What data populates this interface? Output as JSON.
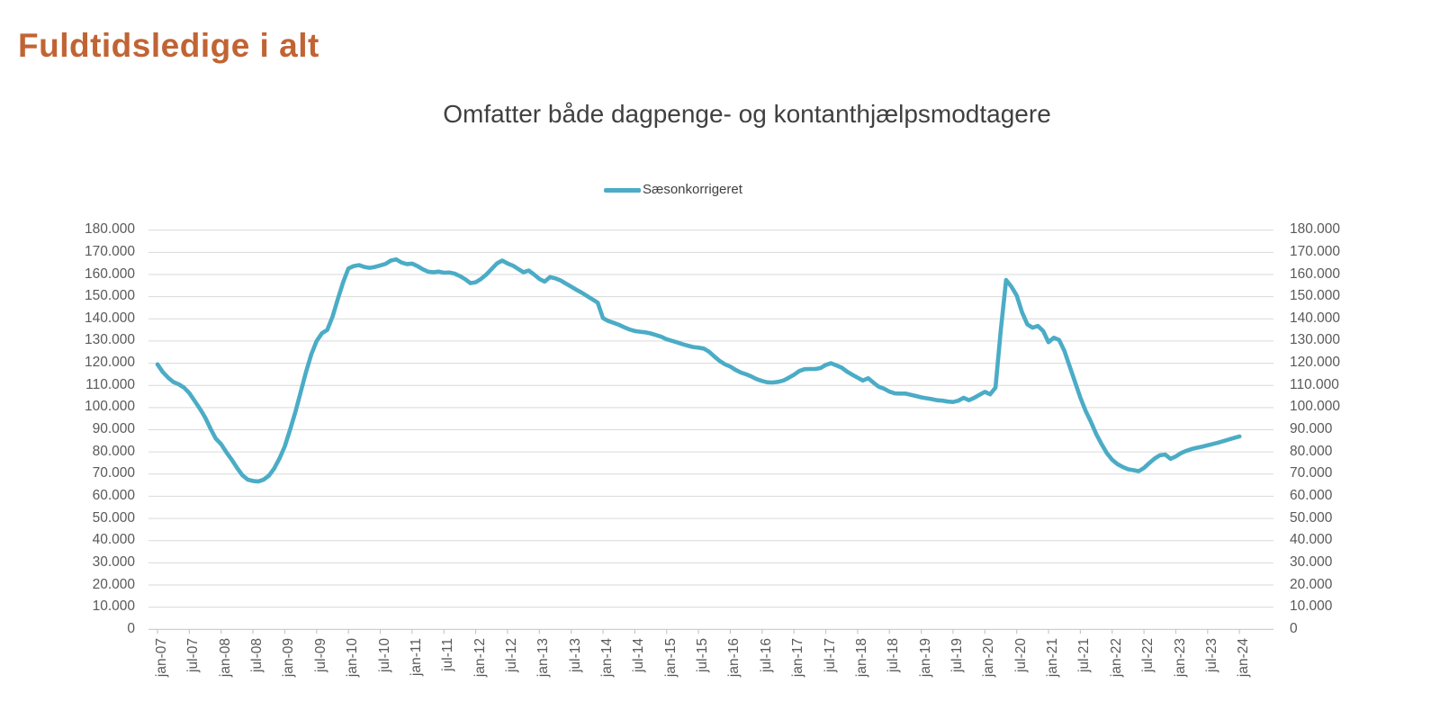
{
  "header": {
    "title": "Fuldtidsledige i alt"
  },
  "chart": {
    "subtitle": "Omfatter både dagpenge- og kontanthjælpsmodtagere",
    "legend": [
      {
        "label": "Sæsonkorrigeret",
        "color": "#4BACC6"
      }
    ]
  },
  "colors": {
    "title": "#C16434",
    "subtitle_text": "#404040",
    "legend_text": "#404040",
    "tick_text": "#595959",
    "gridline": "#D9D9D9",
    "axis_line": "#C9C9C9",
    "series_line": "#4BACC6"
  },
  "chart_data": {
    "type": "line",
    "title": "Omfatter både dagpenge- og kontanthjælpsmodtagere",
    "legend_position": "top",
    "grid": true,
    "ylim": [
      0,
      180000
    ],
    "y_tick_interval": 10000,
    "y_tick_labels": [
      "180.000",
      "170.000",
      "160.000",
      "150.000",
      "140.000",
      "130.000",
      "120.000",
      "110.000",
      "100.000",
      "90.000",
      "80.000",
      "70.000",
      "60.000",
      "50.000",
      "40.000",
      "30.000",
      "20.000",
      "10.000",
      "0"
    ],
    "x_tick_labels": [
      "jan-07",
      "jul-07",
      "jan-08",
      "jul-08",
      "jan-09",
      "jul-09",
      "jan-10",
      "jul-10",
      "jan-11",
      "jul-11",
      "jan-12",
      "jul-12",
      "jan-13",
      "jul-13",
      "jan-14",
      "jul-14",
      "jan-15",
      "jul-15",
      "jan-16",
      "jul-16",
      "jan-17",
      "jul-17",
      "jan-18",
      "jul-18",
      "jan-19",
      "jul-19",
      "jan-20",
      "jul-20",
      "jan-21",
      "jul-21",
      "jan-22",
      "jul-22",
      "jan-23",
      "jul-23",
      "jan-24"
    ],
    "x_start": "jan-07",
    "x_end": "jan-24",
    "x_frequency": "monthly",
    "series": [
      {
        "name": "Sæsonkorrigeret",
        "color": "#4BACC6",
        "values": [
          119500,
          116000,
          113500,
          111500,
          110500,
          109000,
          106500,
          103000,
          99500,
          95500,
          90500,
          86000,
          83500,
          79800,
          76500,
          72800,
          69500,
          67500,
          66900,
          66700,
          67500,
          69300,
          72500,
          77000,
          82500,
          90000,
          98000,
          107000,
          116000,
          124000,
          130000,
          133500,
          135000,
          141000,
          149000,
          156500,
          162700,
          163800,
          164200,
          163400,
          163000,
          163400,
          164100,
          164800,
          166300,
          166800,
          165400,
          164700,
          164900,
          163800,
          162400,
          161300,
          161000,
          161300,
          160800,
          160900,
          160400,
          159300,
          157900,
          156100,
          156500,
          158000,
          160000,
          162500,
          165000,
          166300,
          165000,
          164000,
          162500,
          161000,
          161800,
          160000,
          158000,
          156800,
          158800,
          158300,
          157300,
          155900,
          154500,
          153100,
          151800,
          150300,
          148800,
          147300,
          140300,
          139000,
          138200,
          137300,
          136200,
          135200,
          134500,
          134200,
          133900,
          133400,
          132700,
          131900,
          130800,
          130100,
          129400,
          128600,
          127900,
          127300,
          127000,
          126600,
          125200,
          123000,
          121000,
          119500,
          118500,
          117000,
          115800,
          115000,
          114000,
          112800,
          112000,
          111400,
          111300,
          111600,
          112200,
          113400,
          114800,
          116500,
          117300,
          117400,
          117400,
          117800,
          119200,
          120000,
          119000,
          118000,
          116200,
          114800,
          113500,
          112200,
          113200,
          111200,
          109400,
          108500,
          107200,
          106400,
          106300,
          106300,
          105800,
          105200,
          104600,
          104200,
          103800,
          103300,
          103100,
          102700,
          102500,
          103100,
          104400,
          103300,
          104400,
          105800,
          107100,
          106000,
          109000,
          135000,
          157500,
          154500,
          150500,
          143000,
          137500,
          136000,
          136800,
          134500,
          129500,
          131500,
          130500,
          125500,
          118500,
          111500,
          104500,
          98500,
          93500,
          88000,
          83500,
          79500,
          76500,
          74500,
          73200,
          72200,
          71800,
          71300,
          72800,
          75000,
          77000,
          78500,
          78800,
          76900,
          78000,
          79500,
          80500,
          81300,
          81900,
          82400,
          83000,
          83600,
          84200,
          84900,
          85600,
          86300,
          87000
        ]
      }
    ]
  }
}
